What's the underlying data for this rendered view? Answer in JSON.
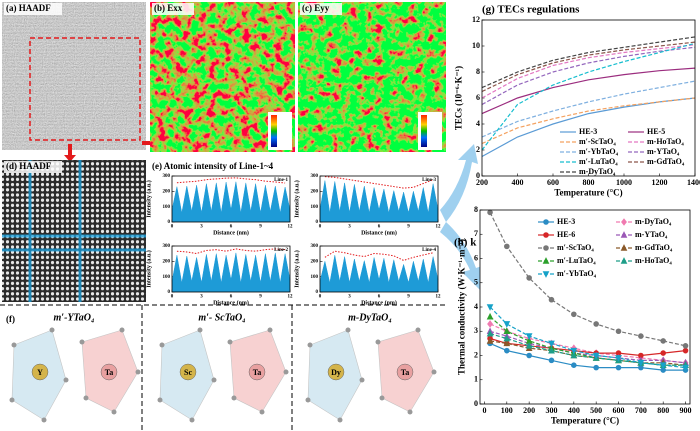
{
  "panels": {
    "a": "(a) HAADF",
    "b": "(b) Exx",
    "c": "(c) Eyy",
    "d": "(d) HAADF",
    "e": "(e) Atomic intensity of Line-1~4",
    "f": "(f)"
  },
  "structures": [
    {
      "title": "m′-YTaO₄",
      "atoms": [
        "Y",
        "Ta"
      ]
    },
    {
      "title": "m′- ScTaO₄",
      "atoms": [
        "Sc",
        "Ta"
      ]
    },
    {
      "title": "m-DyTaO₄",
      "atoms": [
        "Dy",
        "Ta"
      ]
    }
  ],
  "chart_data": [
    {
      "type": "area",
      "xlabel": "Distance (nm)",
      "ylabel": "Intensity (a.u.)",
      "x": [
        0,
        0.5,
        1,
        1.5,
        2,
        2.5,
        3,
        3.5,
        4,
        4.5,
        5,
        5.5,
        6,
        6.5,
        7,
        7.5,
        8,
        8.5,
        9,
        9.5,
        10,
        10.5,
        11,
        11.5,
        12
      ],
      "xlim": [
        0,
        12
      ],
      "ylim": [
        0,
        300
      ],
      "xticks": [
        0,
        3,
        6,
        9,
        12
      ],
      "yticks": [
        0,
        100,
        200,
        300
      ],
      "envelope_color": "#e31a1c",
      "series": [
        {
          "name": "Line-1",
          "color": "#1e9bd7",
          "values": [
            80,
            230,
            60,
            235,
            70,
            240,
            60,
            250,
            70,
            255,
            60,
            260,
            80,
            262,
            60,
            255,
            70,
            250,
            60,
            240,
            70,
            235,
            60,
            228,
            80
          ]
        }
      ]
    },
    {
      "type": "area",
      "xlabel": "Distance (nm)",
      "ylabel": "Intensity (a.u.)",
      "x": [
        0,
        0.5,
        1,
        1.5,
        2,
        2.5,
        3,
        3.5,
        4,
        4.5,
        5,
        5.5,
        6,
        6.5,
        7,
        7.5,
        8,
        8.5,
        9,
        9.5,
        10,
        10.5,
        11,
        11.5,
        12
      ],
      "xlim": [
        0,
        12
      ],
      "ylim": [
        0,
        300
      ],
      "xticks": [
        0,
        3,
        6,
        9,
        12
      ],
      "yticks": [
        0,
        100,
        200,
        300
      ],
      "envelope_color": "#e31a1c",
      "series": [
        {
          "name": "Line-3",
          "color": "#1e9bd7",
          "values": [
            80,
            270,
            60,
            265,
            70,
            255,
            60,
            245,
            70,
            235,
            60,
            225,
            80,
            215,
            60,
            205,
            70,
            195,
            60,
            200,
            70,
            225,
            60,
            250,
            80
          ]
        }
      ]
    },
    {
      "type": "area",
      "xlabel": "Distance (nm)",
      "ylabel": "Intensity (a.u.)",
      "x": [
        0,
        0.5,
        1,
        1.5,
        2,
        2.5,
        3,
        3.5,
        4,
        4.5,
        5,
        5.5,
        6,
        6.5,
        7,
        7.5,
        8,
        8.5,
        9,
        9.5,
        10,
        10.5,
        11,
        11.5,
        12
      ],
      "xlim": [
        0,
        12
      ],
      "ylim": [
        0,
        300
      ],
      "xticks": [
        0,
        3,
        6,
        9,
        12
      ],
      "yticks": [
        0,
        100,
        200,
        300
      ],
      "envelope_color": "#e31a1c",
      "series": [
        {
          "name": "Line-2",
          "color": "#1e9bd7",
          "values": [
            70,
            240,
            60,
            235,
            70,
            225,
            60,
            245,
            70,
            250,
            60,
            240,
            80,
            255,
            60,
            245,
            70,
            240,
            60,
            250,
            70,
            255,
            60,
            250,
            80
          ]
        }
      ]
    },
    {
      "type": "area",
      "xlabel": "Distance (nm)",
      "ylabel": "Intensity (a.u.)",
      "x": [
        0,
        0.5,
        1,
        1.5,
        2,
        2.5,
        3,
        3.5,
        4,
        4.5,
        5,
        5.5,
        6,
        6.5,
        7,
        7.5,
        8,
        8.5,
        9,
        9.5,
        10,
        10.5,
        11,
        11.5,
        12
      ],
      "xlim": [
        0,
        12
      ],
      "ylim": [
        0,
        300
      ],
      "xticks": [
        0,
        3,
        6,
        9,
        12
      ],
      "yticks": [
        0,
        100,
        200,
        300
      ],
      "envelope_color": "#e31a1c",
      "series": [
        {
          "name": "Line-4",
          "color": "#1e9bd7",
          "values": [
            70,
            200,
            60,
            240,
            70,
            230,
            60,
            215,
            70,
            205,
            60,
            225,
            80,
            220,
            60,
            210,
            70,
            180,
            60,
            200,
            70,
            215,
            60,
            230,
            80
          ]
        }
      ]
    },
    {
      "type": "line",
      "title": "(g) TECs regulations",
      "xlabel": "Temperature (°C)",
      "ylabel": "TECs (10⁻⁶·K⁻¹)",
      "x": [
        200,
        400,
        600,
        800,
        1000,
        1200,
        1400
      ],
      "xlim": [
        200,
        1400
      ],
      "ylim": [
        0,
        12
      ],
      "xticks": [
        200,
        400,
        600,
        800,
        1000,
        1200,
        1400
      ],
      "yticks": [
        0,
        2,
        4,
        6,
        8,
        10,
        12
      ],
      "series": [
        {
          "name": "HE-3",
          "color": "#5b9bd5",
          "dashed": false,
          "values": [
            1.5,
            3.0,
            4.0,
            4.8,
            5.3,
            5.7,
            6.0
          ]
        },
        {
          "name": "HE-5",
          "color": "#9b2d7f",
          "dashed": false,
          "values": [
            4.8,
            6.0,
            6.8,
            7.4,
            7.8,
            8.1,
            8.3
          ]
        },
        {
          "name": "m′-ScTaO₄",
          "color": "#f4a261",
          "dashed": true,
          "values": [
            2.5,
            3.7,
            4.4,
            5.0,
            5.4,
            5.7,
            6.0
          ]
        },
        {
          "name": "m-HoTaO₄",
          "color": "#e377c2",
          "dashed": true,
          "values": [
            6.0,
            7.5,
            8.5,
            9.1,
            9.5,
            9.8,
            10.1
          ]
        },
        {
          "name": "m′-YbTaO₄",
          "color": "#7fb0e0",
          "dashed": true,
          "values": [
            3.0,
            4.2,
            5.0,
            5.7,
            6.3,
            6.8,
            7.3
          ]
        },
        {
          "name": "m-YTaO₄",
          "color": "#9467bd",
          "dashed": true,
          "values": [
            5.5,
            7.0,
            8.0,
            8.7,
            9.2,
            9.6,
            9.9
          ]
        },
        {
          "name": "m′-LuTaO₄",
          "color": "#17becf",
          "dashed": true,
          "values": [
            2.0,
            5.5,
            7.0,
            8.0,
            8.8,
            9.5,
            10.2
          ]
        },
        {
          "name": "m-GdTaO₄",
          "color": "#8c564b",
          "dashed": true,
          "values": [
            6.5,
            7.8,
            8.7,
            9.3,
            9.7,
            10.0,
            10.3
          ]
        },
        {
          "name": "m-DyTaO₄",
          "color": "#444444",
          "dashed": true,
          "values": [
            6.8,
            8.0,
            8.9,
            9.5,
            9.9,
            10.3,
            10.7
          ]
        }
      ]
    },
    {
      "type": "line",
      "title": "(h) k",
      "xlabel": "Temperature (°C)",
      "ylabel": "Thermal conductivity (W·K⁻¹·m⁻¹)",
      "x": [
        25,
        100,
        200,
        300,
        400,
        500,
        600,
        700,
        800,
        900
      ],
      "xlim": [
        -20,
        920
      ],
      "ylim": [
        0,
        8
      ],
      "xticks": [
        0,
        100,
        200,
        300,
        400,
        500,
        600,
        700,
        800,
        900
      ],
      "yticks": [
        0,
        1,
        2,
        3,
        4,
        5,
        6,
        7,
        8
      ],
      "series": [
        {
          "name": "HE-3",
          "color": "#2b8cc4",
          "dashed": false,
          "marker": "circle",
          "values": [
            2.5,
            2.2,
            2.0,
            1.8,
            1.6,
            1.5,
            1.5,
            1.5,
            1.4,
            1.4
          ]
        },
        {
          "name": "m-DyTaO₄",
          "color": "#f07ab0",
          "dashed": true,
          "marker": "diamond",
          "values": [
            3.3,
            3.0,
            2.7,
            2.5,
            2.3,
            2.1,
            2.0,
            1.9,
            1.8,
            1.7
          ]
        },
        {
          "name": "HE-6",
          "color": "#d62728",
          "dashed": false,
          "marker": "circle",
          "values": [
            2.7,
            2.5,
            2.4,
            2.3,
            2.2,
            2.1,
            2.1,
            2.0,
            2.1,
            2.2
          ]
        },
        {
          "name": "m-YTaO₄",
          "color": "#9b59b6",
          "dashed": true,
          "marker": "triangle",
          "values": [
            3.0,
            2.8,
            2.5,
            2.3,
            2.1,
            2.0,
            1.9,
            1.8,
            1.8,
            1.7
          ]
        },
        {
          "name": "m′-ScTaO₄",
          "color": "#777777",
          "dashed": true,
          "marker": "circle",
          "values": [
            7.9,
            6.5,
            5.2,
            4.3,
            3.7,
            3.3,
            3.0,
            2.8,
            2.6,
            2.4
          ]
        },
        {
          "name": "m-GdTaO₄",
          "color": "#8b5a2b",
          "dashed": true,
          "marker": "triangle",
          "values": [
            2.6,
            2.5,
            2.3,
            2.2,
            2.0,
            1.9,
            1.8,
            1.7,
            1.7,
            1.6
          ]
        },
        {
          "name": "m′-LuTaO₄",
          "color": "#2ca02c",
          "dashed": true,
          "marker": "triangle",
          "values": [
            3.6,
            3.0,
            2.6,
            2.3,
            2.1,
            1.9,
            1.8,
            1.7,
            1.6,
            1.6
          ]
        },
        {
          "name": "m-HoTaO₄",
          "color": "#1f9e89",
          "dashed": true,
          "marker": "triangle",
          "values": [
            2.9,
            2.7,
            2.4,
            2.2,
            2.0,
            1.9,
            1.8,
            1.7,
            1.6,
            1.6
          ]
        },
        {
          "name": "m′-YbTaO₄",
          "color": "#17a2c8",
          "dashed": true,
          "marker": "down-triangle",
          "values": [
            4.0,
            3.3,
            2.8,
            2.5,
            2.2,
            2.0,
            1.9,
            1.7,
            1.6,
            1.5
          ]
        }
      ]
    }
  ]
}
